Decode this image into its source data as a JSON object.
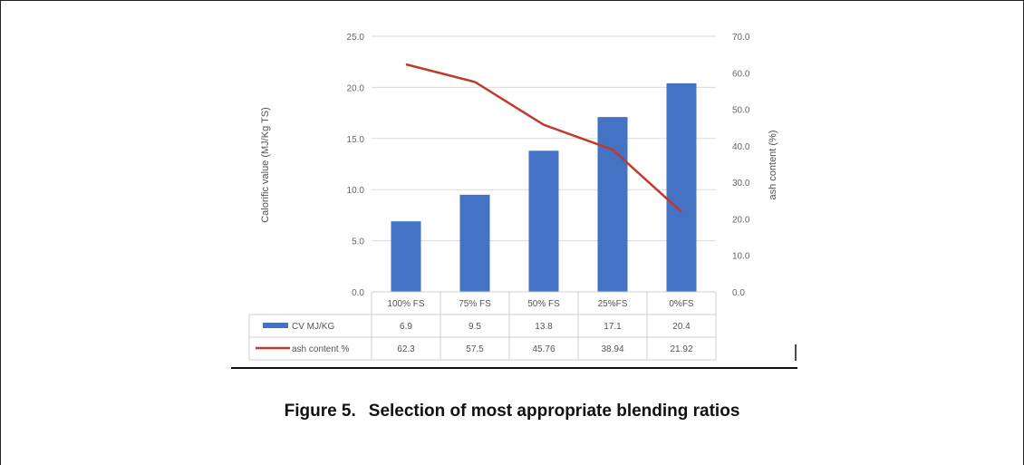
{
  "figure": {
    "label": "Figure 5.",
    "caption": "Selection of most appropriate blending ratios"
  },
  "chart_data": {
    "type": "bar",
    "title": "",
    "categories": [
      "100% FS",
      "75% FS",
      "50% FS",
      "25%FS",
      "0%FS"
    ],
    "left_axis": {
      "label": "Calorific value (MJ/Kg TS)",
      "min": 0,
      "max": 25,
      "ticks": [
        "0.0",
        "5.0",
        "10.0",
        "15.0",
        "20.0",
        "25.0"
      ]
    },
    "right_axis": {
      "label": "ash content (%)",
      "min": 0,
      "max": 70,
      "ticks": [
        "0.0",
        "10.0",
        "20.0",
        "30.0",
        "40.0",
        "50.0",
        "60.0",
        "70.0"
      ]
    },
    "grid": true,
    "series": [
      {
        "name": "CV MJ/KG",
        "kind": "bar",
        "axis": "left",
        "color": "#4472c4",
        "values": [
          6.9,
          9.5,
          13.8,
          17.1,
          20.4
        ],
        "labels": [
          "6.9",
          "9.5",
          "13.8",
          "17.1",
          "20.4"
        ]
      },
      {
        "name": "ash content %",
        "kind": "line",
        "axis": "right",
        "color": "#c0392b",
        "values": [
          62.3,
          57.5,
          45.76,
          38.94,
          21.92
        ],
        "labels": [
          "62.3",
          "57.5",
          "45.76",
          "38.94",
          "21.92"
        ]
      }
    ],
    "legend": "data-table"
  }
}
